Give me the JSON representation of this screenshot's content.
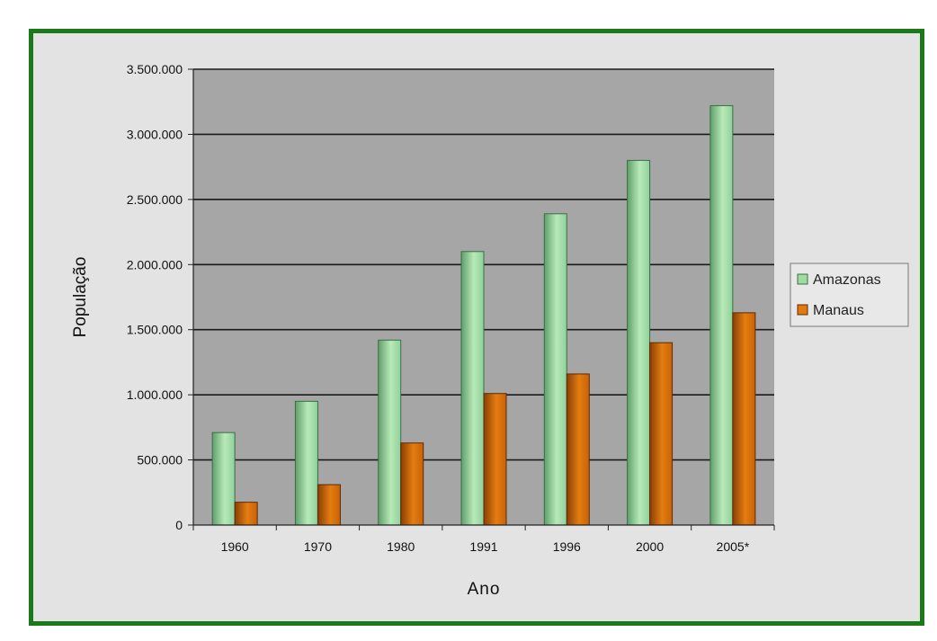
{
  "chart_data": {
    "type": "bar",
    "title": "",
    "xlabel": "Ano",
    "ylabel": "População",
    "categories": [
      "1960",
      "1970",
      "1980",
      "1991",
      "1996",
      "2000",
      "2005*"
    ],
    "series": [
      {
        "name": "Amazonas",
        "values": [
          710000,
          950000,
          1420000,
          2100000,
          2390000,
          2800000,
          3220000
        ]
      },
      {
        "name": "Manaus",
        "values": [
          175000,
          310000,
          630000,
          1010000,
          1160000,
          1400000,
          1630000
        ]
      }
    ],
    "ylim": [
      0,
      3500000
    ],
    "yticks": [
      0,
      500000,
      1000000,
      1500000,
      2000000,
      2500000,
      3000000,
      3500000
    ],
    "ytick_labels": [
      "0",
      "500.000",
      "1.000.000",
      "1.500.000",
      "2.000.000",
      "2.500.000",
      "3.000.000",
      "3.500.000"
    ],
    "grid": true,
    "legend_position": "right",
    "colors": {
      "amazonas": "#9fdc9f",
      "manaus": "#e07b0c",
      "frame_border": "#1a7a1a",
      "frame_background": "#e3e3e3",
      "plot_background": "#a6a6a6"
    }
  }
}
